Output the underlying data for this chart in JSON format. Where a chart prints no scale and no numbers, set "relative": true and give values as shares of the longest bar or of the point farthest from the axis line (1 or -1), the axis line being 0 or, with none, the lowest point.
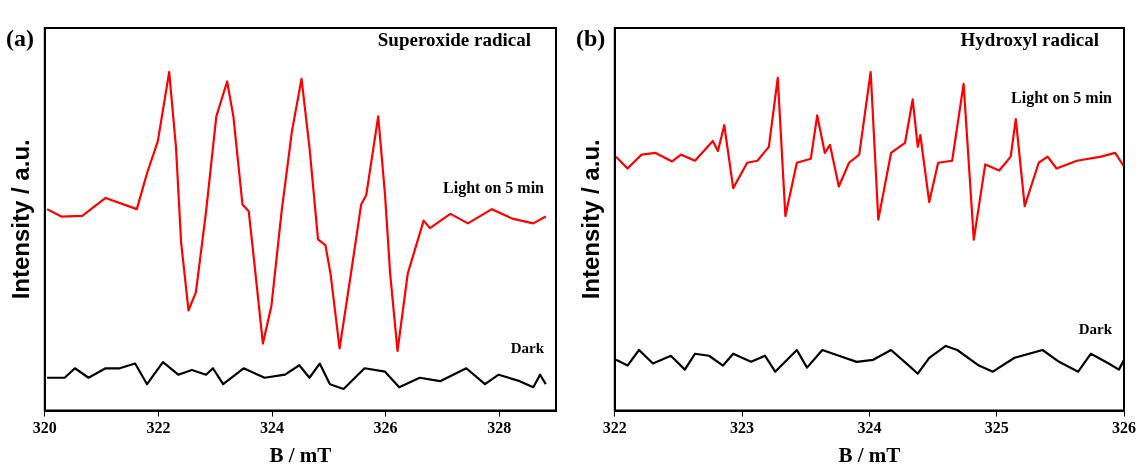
{
  "chart_data": [
    {
      "type": "line",
      "title": "(a)",
      "annotations": [
        "Superoxide radical"
      ],
      "xlabel": "B / mT",
      "ylabel": "Intensity / a.u.",
      "relative": true,
      "legend": false,
      "marker": "none",
      "xlim": [
        320,
        329
      ],
      "xticks": [
        320,
        322,
        324,
        326,
        328
      ],
      "series": [
        {
          "name": "Light on 5 min",
          "color": "#ff0000",
          "x": [
            320.04,
            320.29,
            320.66,
            321.07,
            321.62,
            321.8,
            321.99,
            322.19,
            322.31,
            322.4,
            322.53,
            322.66,
            322.84,
            323.02,
            323.21,
            323.32,
            323.48,
            323.59,
            323.68,
            323.84,
            323.99,
            324.17,
            324.35,
            324.52,
            324.66,
            324.81,
            324.94,
            325.03,
            325.19,
            325.39,
            325.57,
            325.66,
            325.87,
            325.99,
            326.08,
            326.21,
            326.39,
            326.67,
            326.78,
            327.14,
            327.45,
            327.87,
            328.23,
            328.6,
            328.82
          ],
          "values": [
            0.595,
            0.573,
            0.575,
            0.628,
            0.595,
            0.701,
            0.796,
            1.0,
            0.777,
            0.497,
            0.296,
            0.349,
            0.589,
            0.869,
            0.972,
            0.869,
            0.609,
            0.589,
            0.45,
            0.198,
            0.31,
            0.589,
            0.824,
            0.98,
            0.777,
            0.506,
            0.489,
            0.405,
            0.184,
            0.405,
            0.609,
            0.637,
            0.869,
            0.637,
            0.405,
            0.176,
            0.405,
            0.561,
            0.539,
            0.581,
            0.553,
            0.595,
            0.567,
            0.553,
            0.573
          ]
        },
        {
          "name": "Dark",
          "color": "#000000",
          "x": [
            320.04,
            320.35,
            320.53,
            320.77,
            321.07,
            321.32,
            321.59,
            321.8,
            322.08,
            322.35,
            322.59,
            322.84,
            322.96,
            323.14,
            323.5,
            323.87,
            324.23,
            324.48,
            324.66,
            324.84,
            325.02,
            325.26,
            325.63,
            325.99,
            326.24,
            326.6,
            326.96,
            327.42,
            327.75,
            327.99,
            328.36,
            328.6,
            328.72,
            328.82
          ],
          "values": [
            0.097,
            0.097,
            0.125,
            0.097,
            0.125,
            0.125,
            0.139,
            0.078,
            0.143,
            0.106,
            0.12,
            0.106,
            0.125,
            0.078,
            0.125,
            0.097,
            0.106,
            0.134,
            0.097,
            0.139,
            0.078,
            0.064,
            0.125,
            0.115,
            0.069,
            0.097,
            0.087,
            0.125,
            0.078,
            0.106,
            0.087,
            0.069,
            0.106,
            0.078
          ]
        }
      ]
    },
    {
      "type": "line",
      "title": "(b)",
      "annotations": [
        "Hydroxyl radical"
      ],
      "xlabel": "B / mT",
      "ylabel": "Intensity / a.u.",
      "relative": true,
      "legend": false,
      "marker": "none",
      "xlim": [
        322,
        326
      ],
      "xticks": [
        322,
        323,
        324,
        325,
        326
      ],
      "series": [
        {
          "name": "Light on 5 min",
          "color": "#ff0000",
          "x": [
            322.01,
            322.1,
            322.21,
            322.32,
            322.45,
            322.52,
            322.63,
            322.77,
            322.81,
            322.86,
            322.93,
            323.04,
            323.12,
            323.21,
            323.28,
            323.34,
            323.43,
            323.54,
            323.59,
            323.65,
            323.69,
            323.76,
            323.84,
            323.92,
            324.01,
            324.07,
            324.17,
            324.28,
            324.34,
            324.38,
            324.4,
            324.47,
            324.54,
            324.65,
            324.74,
            324.82,
            324.91,
            325.02,
            325.11,
            325.15,
            325.22,
            325.33,
            325.4,
            325.47,
            325.63,
            325.82,
            325.93,
            326.0
          ],
          "values": [
            0.75,
            0.715,
            0.756,
            0.761,
            0.736,
            0.756,
            0.738,
            0.796,
            0.767,
            0.843,
            0.657,
            0.732,
            0.738,
            0.779,
            0.983,
            0.575,
            0.732,
            0.744,
            0.872,
            0.761,
            0.785,
            0.662,
            0.732,
            0.756,
            1.0,
            0.564,
            0.761,
            0.791,
            0.919,
            0.779,
            0.814,
            0.616,
            0.732,
            0.738,
            0.965,
            0.505,
            0.727,
            0.709,
            0.75,
            0.861,
            0.604,
            0.732,
            0.75,
            0.715,
            0.738,
            0.75,
            0.761,
            0.721
          ]
        },
        {
          "name": "Dark",
          "color": "#000000",
          "x": [
            322.01,
            322.1,
            322.19,
            322.3,
            322.44,
            322.55,
            322.63,
            322.74,
            322.85,
            322.93,
            323.07,
            323.18,
            323.26,
            323.43,
            323.51,
            323.63,
            323.76,
            323.9,
            324.03,
            324.17,
            324.31,
            324.38,
            324.47,
            324.6,
            324.69,
            324.86,
            324.97,
            325.14,
            325.36,
            325.49,
            325.64,
            325.74,
            325.88,
            325.96,
            326.0
          ],
          "values": [
            0.15,
            0.133,
            0.179,
            0.139,
            0.162,
            0.121,
            0.168,
            0.162,
            0.133,
            0.168,
            0.144,
            0.162,
            0.115,
            0.179,
            0.127,
            0.179,
            0.162,
            0.144,
            0.15,
            0.179,
            0.133,
            0.109,
            0.156,
            0.191,
            0.179,
            0.133,
            0.115,
            0.156,
            0.179,
            0.144,
            0.115,
            0.168,
            0.139,
            0.121,
            0.15
          ]
        }
      ]
    }
  ]
}
